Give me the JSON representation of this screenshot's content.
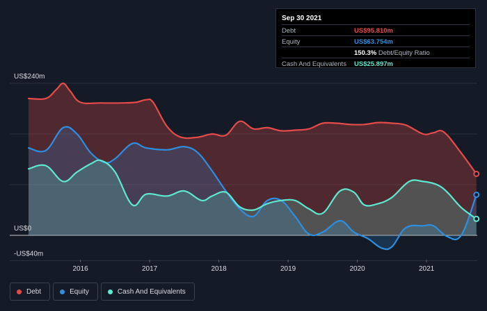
{
  "tooltip": {
    "date": "Sep 30 2021",
    "rows": [
      {
        "label": "Debt",
        "value": "US$95.810m",
        "color": "#e64b4b"
      },
      {
        "label": "Equity",
        "value": "US$63.754m",
        "color": "#2e8fe0"
      },
      {
        "label": "",
        "value": "150.3%",
        "suffix": " Debt/Equity Ratio",
        "color": "#ffffff"
      },
      {
        "label": "Cash And Equivalents",
        "value": "US$25.897m",
        "color": "#5ee8d0"
      }
    ]
  },
  "legend": [
    {
      "label": "Debt",
      "color": "#e64b4b"
    },
    {
      "label": "Equity",
      "color": "#2e8fe0"
    },
    {
      "label": "Cash And Equivalents",
      "color": "#5ee8d0"
    }
  ],
  "chart_data": {
    "type": "area",
    "y_tick_labels": [
      "US$240m",
      "US$0",
      "-US$40m"
    ],
    "x_tick_labels": [
      "2016",
      "2017",
      "2018",
      "2019",
      "2020",
      "2021"
    ],
    "ylim": [
      -40,
      240
    ],
    "xlim": [
      2015.25,
      2021.75
    ],
    "grid": true,
    "legend_position": "bottom-left",
    "series": [
      {
        "name": "Debt",
        "color": "#e64b4b",
        "x": [
          2015.25,
          2015.5,
          2015.65,
          2015.75,
          2015.85,
          2016.0,
          2016.3,
          2016.6,
          2016.8,
          2016.95,
          2017.05,
          2017.25,
          2017.45,
          2017.7,
          2017.9,
          2018.1,
          2018.3,
          2018.5,
          2018.7,
          2018.9,
          2019.1,
          2019.3,
          2019.5,
          2019.7,
          2019.9,
          2020.1,
          2020.3,
          2020.5,
          2020.7,
          2020.95,
          2021.1,
          2021.25,
          2021.5,
          2021.72
        ],
        "values": [
          216,
          216,
          230,
          240,
          228,
          210,
          209,
          209,
          210,
          214,
          210,
          172,
          155,
          155,
          160,
          158,
          180,
          168,
          170,
          165,
          166,
          168,
          177,
          177,
          175,
          175,
          178,
          177,
          174,
          160,
          162,
          163,
          130,
          97
        ]
      },
      {
        "name": "Equity",
        "color": "#2e8fe0",
        "x": [
          2015.25,
          2015.5,
          2015.75,
          2015.95,
          2016.15,
          2016.35,
          2016.5,
          2016.75,
          2016.95,
          2017.25,
          2017.5,
          2017.7,
          2017.9,
          2018.1,
          2018.3,
          2018.5,
          2018.7,
          2018.9,
          2019.1,
          2019.3,
          2019.5,
          2019.75,
          2019.95,
          2020.15,
          2020.35,
          2020.5,
          2020.7,
          2020.95,
          2021.1,
          2021.3,
          2021.5,
          2021.72
        ],
        "values": [
          138,
          134,
          170,
          160,
          130,
          115,
          121,
          145,
          138,
          135,
          140,
          130,
          102,
          70,
          42,
          30,
          55,
          55,
          30,
          2,
          5,
          23,
          5,
          -5,
          -20,
          -18,
          12,
          15,
          15,
          -2,
          0,
          64
        ]
      },
      {
        "name": "Cash And Equivalents",
        "color": "#5ee8d0",
        "x": [
          2015.25,
          2015.5,
          2015.75,
          2015.95,
          2016.15,
          2016.3,
          2016.5,
          2016.75,
          2016.95,
          2017.25,
          2017.5,
          2017.75,
          2017.9,
          2018.1,
          2018.3,
          2018.5,
          2018.7,
          2018.9,
          2019.1,
          2019.3,
          2019.5,
          2019.75,
          2019.95,
          2020.1,
          2020.3,
          2020.5,
          2020.75,
          2020.95,
          2021.15,
          2021.3,
          2021.5,
          2021.72
        ],
        "values": [
          105,
          110,
          85,
          100,
          113,
          118,
          100,
          48,
          65,
          62,
          70,
          55,
          62,
          68,
          45,
          40,
          50,
          55,
          55,
          42,
          35,
          70,
          68,
          48,
          50,
          60,
          85,
          85,
          80,
          68,
          44,
          26
        ]
      }
    ]
  }
}
